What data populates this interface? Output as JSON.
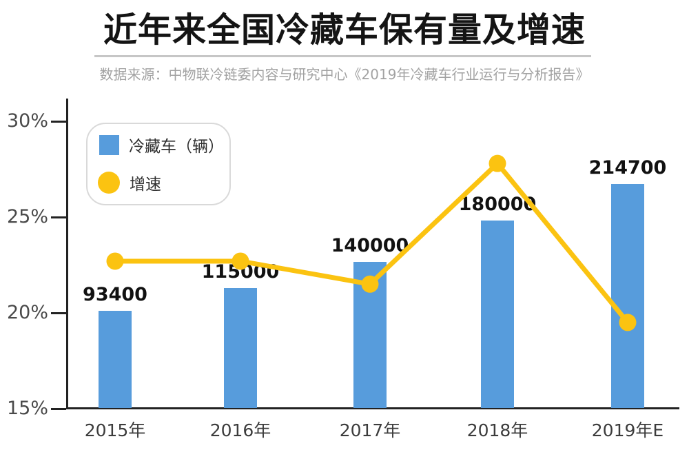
{
  "header": {
    "title": "近年来全国冷藏车保有量及增速",
    "source": "数据来源：中物联冷链委内容与研究中心《2019年冷藏车行业运行与分析报告》"
  },
  "colors": {
    "bar": "#579CDC",
    "line": "#FBC311",
    "axis": "#222222",
    "title_text": "#141414",
    "subtitle_text": "#a2a2a2",
    "value_label": "#111111",
    "tick_label": "#4a4a4a",
    "divider": "#c6c6c6",
    "legend_border": "#d9d9d9"
  },
  "legend": {
    "items": [
      {
        "label": "冷藏车（辆）",
        "swatch": "square",
        "color": "#579CDC"
      },
      {
        "label": "增速",
        "swatch": "circle",
        "color": "#FBC311"
      }
    ]
  },
  "chart_data": {
    "type": "bar",
    "subtype": "bar+line combo",
    "title": "近年来全国冷藏车保有量及增速",
    "source_note": "数据来源：中物联冷链委内容与研究中心《2019年冷藏车行业运行与分析报告》",
    "categories": [
      "2015年",
      "2016年",
      "2017年",
      "2018年",
      "2019年E"
    ],
    "series": [
      {
        "name": "冷藏车（辆）",
        "type": "bar",
        "color": "#579CDC",
        "values": [
          93400,
          115000,
          140000,
          180000,
          214700
        ],
        "data_labels": [
          "93400",
          "115000",
          "140000",
          "180000",
          "214700"
        ]
      },
      {
        "name": "增速",
        "type": "line",
        "color": "#FBC311",
        "values_percent_estimated": [
          22.7,
          22.7,
          21.5,
          27.8,
          19.5
        ]
      }
    ],
    "y_axis_left": {
      "tick_labels": [
        "15%",
        "20%",
        "25%",
        "30%"
      ],
      "tick_values": [
        15,
        20,
        25,
        30
      ],
      "range": [
        15,
        31.2
      ],
      "unit": "%"
    },
    "grid": false,
    "legend_position": "inside-top-left"
  }
}
